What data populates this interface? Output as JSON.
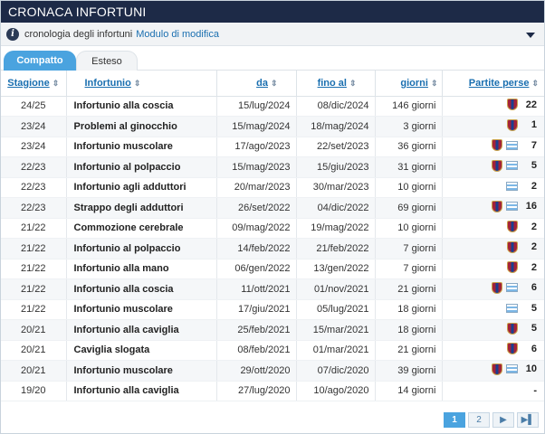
{
  "header": {
    "title": "CRONACA INFORTUNI"
  },
  "subheader": {
    "text": "cronologia degli infortuni",
    "link": "Modulo di modifica"
  },
  "tabs": [
    {
      "label": "Compatto",
      "active": true
    },
    {
      "label": "Esteso",
      "active": false
    }
  ],
  "columns": {
    "season": "Stagione",
    "injury": "Infortunio",
    "from": "da",
    "to": "fino al",
    "days": "giorni",
    "games": "Partite perse"
  },
  "rows": [
    {
      "season": "24/25",
      "injury": "Infortunio alla coscia",
      "from": "15/lug/2024",
      "to": "08/dic/2024",
      "days": "146 giorni",
      "club": true,
      "national": false,
      "games": "22"
    },
    {
      "season": "23/24",
      "injury": "Problemi al ginocchio",
      "from": "15/mag/2024",
      "to": "18/mag/2024",
      "days": "3 giorni",
      "club": true,
      "national": false,
      "games": "1"
    },
    {
      "season": "23/24",
      "injury": "Infortunio muscolare",
      "from": "17/ago/2023",
      "to": "22/set/2023",
      "days": "36 giorni",
      "club": true,
      "national": true,
      "games": "7"
    },
    {
      "season": "22/23",
      "injury": "Infortunio al polpaccio",
      "from": "15/mag/2023",
      "to": "15/giu/2023",
      "days": "31 giorni",
      "club": true,
      "national": true,
      "games": "5"
    },
    {
      "season": "22/23",
      "injury": "Infortunio agli adduttori",
      "from": "20/mar/2023",
      "to": "30/mar/2023",
      "days": "10 giorni",
      "club": false,
      "national": true,
      "games": "2"
    },
    {
      "season": "22/23",
      "injury": "Strappo degli adduttori",
      "from": "26/set/2022",
      "to": "04/dic/2022",
      "days": "69 giorni",
      "club": true,
      "national": true,
      "games": "16"
    },
    {
      "season": "21/22",
      "injury": "Commozione cerebrale",
      "from": "09/mag/2022",
      "to": "19/mag/2022",
      "days": "10 giorni",
      "club": true,
      "national": false,
      "games": "2"
    },
    {
      "season": "21/22",
      "injury": "Infortunio al polpaccio",
      "from": "14/feb/2022",
      "to": "21/feb/2022",
      "days": "7 giorni",
      "club": true,
      "national": false,
      "games": "2"
    },
    {
      "season": "21/22",
      "injury": "Infortunio alla mano",
      "from": "06/gen/2022",
      "to": "13/gen/2022",
      "days": "7 giorni",
      "club": true,
      "national": false,
      "games": "2"
    },
    {
      "season": "21/22",
      "injury": "Infortunio alla coscia",
      "from": "11/ott/2021",
      "to": "01/nov/2021",
      "days": "21 giorni",
      "club": true,
      "national": true,
      "games": "6"
    },
    {
      "season": "21/22",
      "injury": "Infortunio muscolare",
      "from": "17/giu/2021",
      "to": "05/lug/2021",
      "days": "18 giorni",
      "club": false,
      "national": true,
      "games": "5"
    },
    {
      "season": "20/21",
      "injury": "Infortunio alla caviglia",
      "from": "25/feb/2021",
      "to": "15/mar/2021",
      "days": "18 giorni",
      "club": true,
      "national": false,
      "games": "5"
    },
    {
      "season": "20/21",
      "injury": "Caviglia slogata",
      "from": "08/feb/2021",
      "to": "01/mar/2021",
      "days": "21 giorni",
      "club": true,
      "national": false,
      "games": "6"
    },
    {
      "season": "20/21",
      "injury": "Infortunio muscolare",
      "from": "29/ott/2020",
      "to": "07/dic/2020",
      "days": "39 giorni",
      "club": true,
      "national": true,
      "games": "10"
    },
    {
      "season": "19/20",
      "injury": "Infortunio alla caviglia",
      "from": "27/lug/2020",
      "to": "10/ago/2020",
      "days": "14 giorni",
      "club": false,
      "national": false,
      "games": "-"
    }
  ],
  "pagination": {
    "pages": [
      "1",
      "2"
    ],
    "next": "▶",
    "last": "▶▌",
    "current": "1"
  },
  "icons": {
    "info": "info-icon",
    "dropdown": "chevron-down-icon",
    "club": "club-crest-icon",
    "national": "national-team-crest-icon",
    "sort": "sort-icon"
  },
  "colors": {
    "header_bg": "#1d2a47",
    "accent": "#4aa3df",
    "link": "#1a6fb0"
  }
}
